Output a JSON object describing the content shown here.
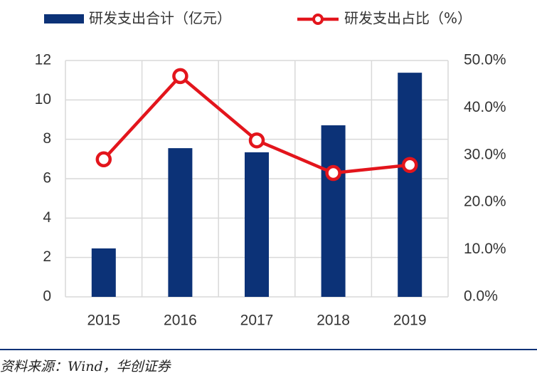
{
  "chart_data": {
    "type": "bar-line",
    "categories": [
      "2015",
      "2016",
      "2017",
      "2018",
      "2019"
    ],
    "series": [
      {
        "name": "研发支出合计（亿元）",
        "type": "bar",
        "color": "#0c3277",
        "values": [
          2.46,
          7.55,
          7.34,
          8.71,
          11.38
        ]
      },
      {
        "name": "研发支出占比（%）",
        "type": "line",
        "axis": "y2",
        "color": "#e3151c",
        "values": [
          29.1,
          46.7,
          33.1,
          26.2,
          27.9
        ]
      }
    ],
    "ylim": [
      0,
      12
    ],
    "yticks": [
      0,
      2,
      4,
      6,
      8,
      10,
      12
    ],
    "y2lim": [
      0,
      50
    ],
    "y2ticks": [
      {
        "value": 0,
        "label": "0.0%"
      },
      {
        "value": 10,
        "label": "10.0%"
      },
      {
        "value": 20,
        "label": "20.0%"
      },
      {
        "value": 30,
        "label": "30.0%"
      },
      {
        "value": 40,
        "label": "40.0%"
      },
      {
        "value": 50,
        "label": "50.0%"
      }
    ],
    "grid": true,
    "legend": "top"
  },
  "source": "资料来源：Wind，华创证券"
}
